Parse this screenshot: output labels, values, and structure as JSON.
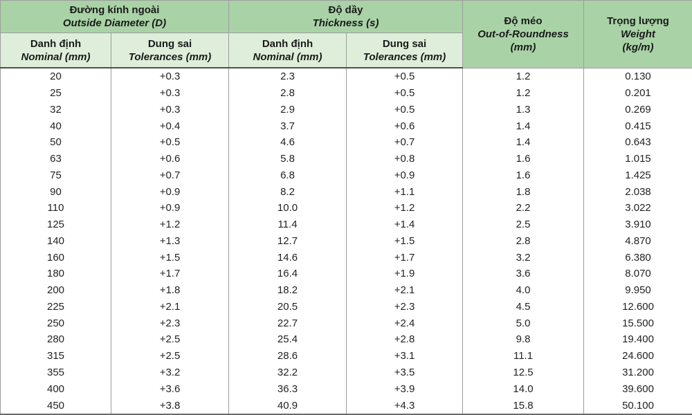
{
  "table": {
    "column_groups": [
      {
        "title_vi": "Đường kính ngoài",
        "title_en": "Outside Diameter (D)"
      },
      {
        "title_vi": "Độ dầy",
        "title_en": "Thickness (s)"
      }
    ],
    "single_columns": [
      {
        "title_vi": "Độ méo",
        "title_en": "Out-of-Roundness",
        "unit": "(mm)"
      },
      {
        "title_vi": "Trọng lượng",
        "title_en": "Weight",
        "unit": "(kg/m)"
      }
    ],
    "sub_headers": [
      {
        "vi": "Danh định",
        "en": "Nominal (mm)"
      },
      {
        "vi": "Dung sai",
        "en": "Tolerances (mm)"
      },
      {
        "vi": "Danh định",
        "en": "Nominal (mm)"
      },
      {
        "vi": "Dung sai",
        "en": "Tolerances (mm)"
      }
    ],
    "rows": [
      [
        "20",
        "+0.3",
        "2.3",
        "+0.5",
        "1.2",
        "0.130"
      ],
      [
        "25",
        "+0.3",
        "2.8",
        "+0.5",
        "1.2",
        "0.201"
      ],
      [
        "32",
        "+0.3",
        "2.9",
        "+0.5",
        "1.3",
        "0.269"
      ],
      [
        "40",
        "+0.4",
        "3.7",
        "+0.6",
        "1.4",
        "0.415"
      ],
      [
        "50",
        "+0.5",
        "4.6",
        "+0.7",
        "1.4",
        "0.643"
      ],
      [
        "63",
        "+0.6",
        "5.8",
        "+0.8",
        "1.6",
        "1.015"
      ],
      [
        "75",
        "+0.7",
        "6.8",
        "+0.9",
        "1.6",
        "1.425"
      ],
      [
        "90",
        "+0.9",
        "8.2",
        "+1.1",
        "1.8",
        "2.038"
      ],
      [
        "110",
        "+0.9",
        "10.0",
        "+1.2",
        "2.2",
        "3.022"
      ],
      [
        "125",
        "+1.2",
        "11.4",
        "+1.4",
        "2.5",
        "3.910"
      ],
      [
        "140",
        "+1.3",
        "12.7",
        "+1.5",
        "2.8",
        "4.870"
      ],
      [
        "160",
        "+1.5",
        "14.6",
        "+1.7",
        "3.2",
        "6.380"
      ],
      [
        "180",
        "+1.7",
        "16.4",
        "+1.9",
        "3.6",
        "8.070"
      ],
      [
        "200",
        "+1.8",
        "18.2",
        "+2.1",
        "4.0",
        "9.950"
      ],
      [
        "225",
        "+2.1",
        "20.5",
        "+2.3",
        "4.5",
        "12.600"
      ],
      [
        "250",
        "+2.3",
        "22.7",
        "+2.4",
        "5.0",
        "15.500"
      ],
      [
        "280",
        "+2.5",
        "25.4",
        "+2.8",
        "9.8",
        "19.400"
      ],
      [
        "315",
        "+2.5",
        "28.6",
        "+3.1",
        "11.1",
        "24.600"
      ],
      [
        "355",
        "+3.2",
        "32.2",
        "+3.5",
        "12.5",
        "31.200"
      ],
      [
        "400",
        "+3.6",
        "36.3",
        "+3.9",
        "14.0",
        "39.600"
      ],
      [
        "450",
        "+3.8",
        "40.9",
        "+4.3",
        "15.8",
        "50.100"
      ]
    ]
  },
  "colors": {
    "header_green": "#a9d3a6",
    "subheader_green": "#deeeda",
    "border_gray": "#9c9c9c",
    "text": "#1a1a1a"
  }
}
